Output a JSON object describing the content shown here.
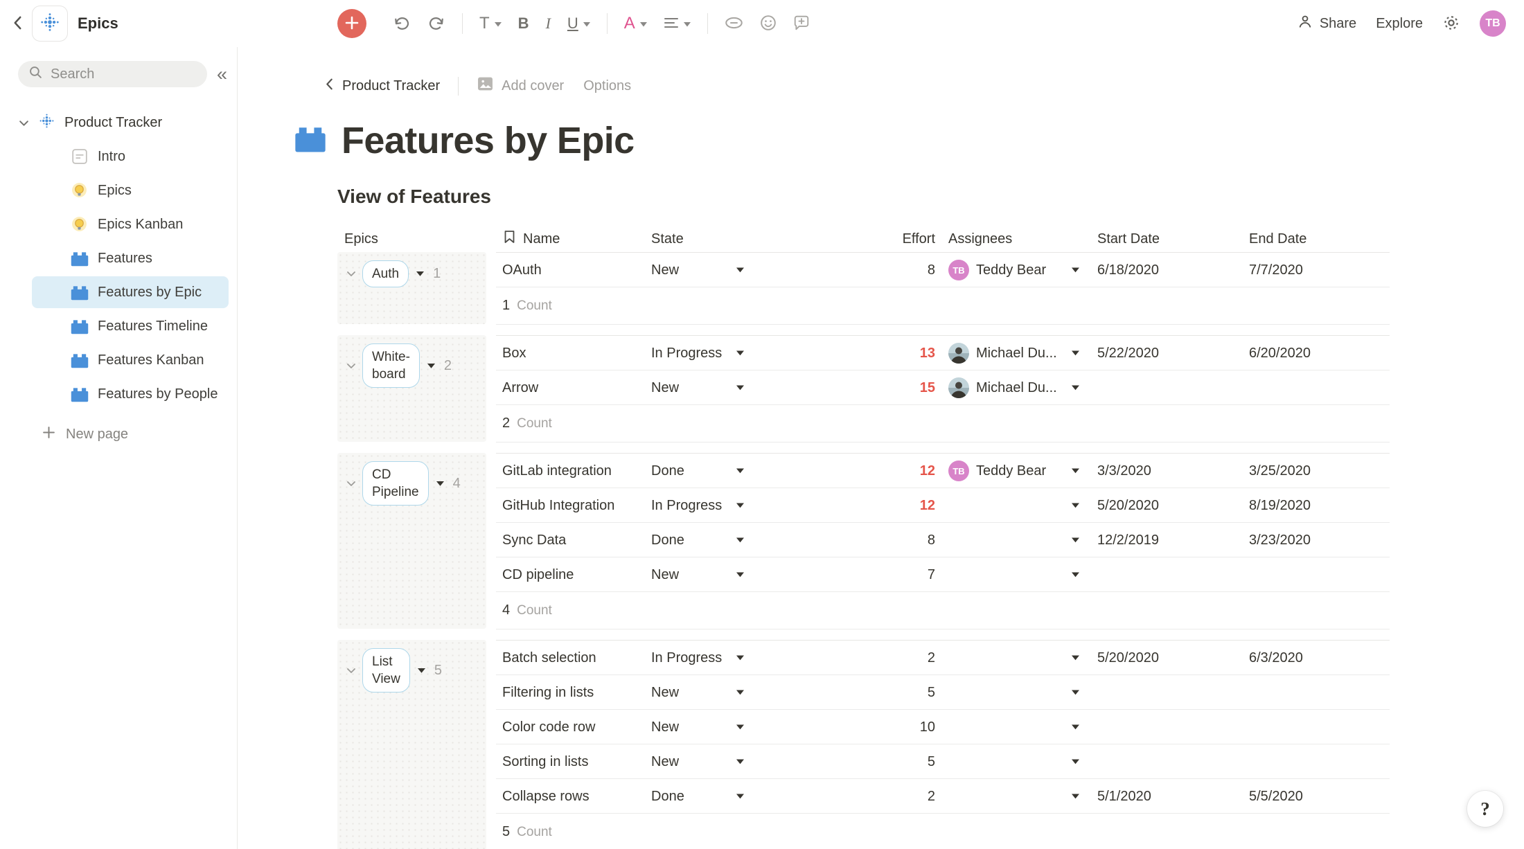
{
  "topbar": {
    "title": "Epics",
    "share_label": "Share",
    "explore_label": "Explore",
    "avatar_initials": "TB"
  },
  "toolbar": {
    "text_style_glyph": "T",
    "bold_glyph": "B",
    "italic_glyph": "I",
    "underline_glyph": "U",
    "color_glyph": "A",
    "icons": [
      "plus-icon",
      "undo-icon",
      "redo-icon",
      "text-style-icon",
      "bold-icon",
      "italic-icon",
      "underline-icon",
      "text-color-icon",
      "align-icon",
      "link-icon",
      "emoji-icon",
      "comment-add-icon"
    ]
  },
  "sidebar": {
    "search_placeholder": "Search",
    "workspace": "Product Tracker",
    "items": [
      {
        "label": "Intro",
        "icon": "document",
        "selected": false
      },
      {
        "label": "Epics",
        "icon": "lightbulb",
        "selected": false
      },
      {
        "label": "Epics Kanban",
        "icon": "lightbulb",
        "selected": false
      },
      {
        "label": "Features",
        "icon": "brick",
        "selected": false
      },
      {
        "label": "Features by Epic",
        "icon": "brick",
        "selected": true
      },
      {
        "label": "Features Timeline",
        "icon": "brick",
        "selected": false
      },
      {
        "label": "Features Kanban",
        "icon": "brick",
        "selected": false
      },
      {
        "label": "Features by People",
        "icon": "brick",
        "selected": false
      }
    ],
    "new_page_label": "New page"
  },
  "breadcrumb": {
    "back_label": "Product Tracker",
    "add_cover_label": "Add cover",
    "options_label": "Options"
  },
  "page": {
    "title": "Features by Epic",
    "view_title": "View of Features"
  },
  "table": {
    "group_header": "Epics",
    "columns": [
      "Name",
      "State",
      "Effort",
      "Assignees",
      "Start Date",
      "End Date"
    ],
    "count_label": "Count",
    "groups": [
      {
        "epic": "Auth",
        "epic_lines": [
          "Auth"
        ],
        "count": "1",
        "rows": [
          {
            "name": "OAuth",
            "state": "New",
            "effort": "8",
            "effort_red": false,
            "assignee": {
              "type": "initials",
              "initials": "TB",
              "name": "Teddy Bear"
            },
            "start": "6/18/2020",
            "end": "7/7/2020"
          }
        ]
      },
      {
        "epic": "Whiteboard",
        "epic_lines": [
          "White-",
          "board"
        ],
        "count": "2",
        "rows": [
          {
            "name": "Box",
            "state": "In Progress",
            "effort": "13",
            "effort_red": true,
            "assignee": {
              "type": "photo",
              "name": "Michael Du..."
            },
            "start": "5/22/2020",
            "end": "6/20/2020"
          },
          {
            "name": "Arrow",
            "state": "New",
            "effort": "15",
            "effort_red": true,
            "assignee": {
              "type": "photo",
              "name": "Michael Du..."
            },
            "start": "",
            "end": ""
          }
        ]
      },
      {
        "epic": "CD Pipeline",
        "epic_lines": [
          "CD",
          "Pipeline"
        ],
        "count": "4",
        "rows": [
          {
            "name": "GitLab integration",
            "state": "Done",
            "effort": "12",
            "effort_red": true,
            "assignee": {
              "type": "initials",
              "initials": "TB",
              "name": "Teddy Bear"
            },
            "start": "3/3/2020",
            "end": "3/25/2020"
          },
          {
            "name": "GitHub Integration",
            "state": "In Progress",
            "effort": "12",
            "effort_red": true,
            "assignee": null,
            "start": "5/20/2020",
            "end": "8/19/2020"
          },
          {
            "name": "Sync Data",
            "state": "Done",
            "effort": "8",
            "effort_red": false,
            "assignee": null,
            "start": "12/2/2019",
            "end": "3/23/2020"
          },
          {
            "name": "CD pipeline",
            "state": "New",
            "effort": "7",
            "effort_red": false,
            "assignee": null,
            "start": "",
            "end": ""
          }
        ]
      },
      {
        "epic": "List View",
        "epic_lines": [
          "List",
          "View"
        ],
        "count": "5",
        "rows": [
          {
            "name": "Batch selection",
            "state": "In Progress",
            "effort": "2",
            "effort_red": false,
            "assignee": null,
            "start": "5/20/2020",
            "end": "6/3/2020"
          },
          {
            "name": "Filtering in lists",
            "state": "New",
            "effort": "5",
            "effort_red": false,
            "assignee": null,
            "start": "",
            "end": ""
          },
          {
            "name": "Color code row",
            "state": "New",
            "effort": "10",
            "effort_red": false,
            "assignee": null,
            "start": "",
            "end": ""
          },
          {
            "name": "Sorting in lists",
            "state": "New",
            "effort": "5",
            "effort_red": false,
            "assignee": null,
            "start": "",
            "end": ""
          },
          {
            "name": "Collapse rows",
            "state": "Done",
            "effort": "2",
            "effort_red": false,
            "assignee": null,
            "start": "5/1/2020",
            "end": "5/5/2020"
          }
        ]
      }
    ]
  },
  "help_label": "?",
  "colors": {
    "accent_blue": "#4a90d9",
    "selected_item_bg": "#ddeef7",
    "pill_border": "#aed7ea",
    "effort_red": "#e5554a",
    "plus_button": "#e2675c",
    "avatar_pink": "#d884c9",
    "text_dark": "#37352f",
    "text_gray": "#9b9a97"
  }
}
